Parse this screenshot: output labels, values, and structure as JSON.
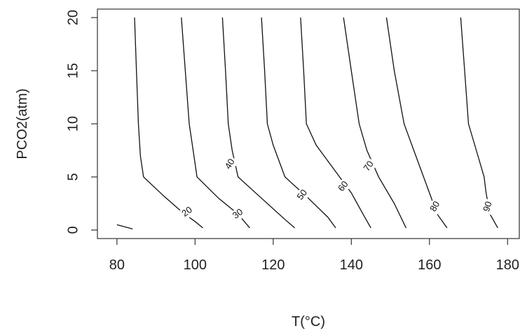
{
  "chart_data": {
    "type": "contour",
    "title": "",
    "xlabel": "T(°C)",
    "ylabel": "PCO2(atm)",
    "xlim": [
      75,
      183
    ],
    "ylim": [
      -0.8,
      20.8
    ],
    "xticks": [
      80,
      100,
      120,
      140,
      160,
      180
    ],
    "yticks": [
      0,
      5,
      10,
      15,
      20
    ],
    "grid": false,
    "contours": [
      {
        "level": "20",
        "points": [
          [
            80,
            0.5
          ],
          [
            84,
            0.1
          ]
        ]
      },
      {
        "level": "20",
        "points": [
          [
            86.8,
            5
          ],
          [
            92,
            3.2
          ],
          [
            97,
            1.6
          ],
          [
            100,
            0.8
          ],
          [
            102,
            0.2
          ]
        ]
      },
      {
        "level": "20",
        "points": [
          [
            84.5,
            20
          ],
          [
            85,
            15
          ],
          [
            85.5,
            10
          ],
          [
            86,
            7
          ],
          [
            86.8,
            5
          ]
        ]
      },
      {
        "level": "30",
        "points": [
          [
            96.5,
            20
          ],
          [
            97.5,
            15
          ],
          [
            98.5,
            10
          ],
          [
            99.5,
            7.5
          ],
          [
            100.5,
            5
          ],
          [
            106,
            3
          ],
          [
            111,
            1.5
          ],
          [
            114,
            0.2
          ]
        ]
      },
      {
        "level": "40",
        "points": [
          [
            107,
            20
          ],
          [
            107.8,
            15
          ],
          [
            108.5,
            10
          ],
          [
            109.5,
            7.5
          ],
          [
            111,
            5
          ],
          [
            117,
            3
          ],
          [
            123,
            1
          ],
          [
            125.5,
            0.2
          ]
        ]
      },
      {
        "level": "50",
        "points": [
          [
            117,
            20
          ],
          [
            117.8,
            15
          ],
          [
            118.5,
            10
          ],
          [
            120,
            8
          ],
          [
            123,
            5
          ],
          [
            129,
            3
          ],
          [
            134,
            1.2
          ],
          [
            136,
            0.2
          ]
        ]
      },
      {
        "level": "60",
        "points": [
          [
            127,
            20
          ],
          [
            127.8,
            15
          ],
          [
            128.5,
            10
          ],
          [
            131,
            8
          ],
          [
            135,
            6
          ],
          [
            140,
            3.5
          ],
          [
            143,
            1.5
          ],
          [
            145,
            0.2
          ]
        ]
      },
      {
        "level": "70",
        "points": [
          [
            138,
            20
          ],
          [
            140,
            15
          ],
          [
            142,
            10
          ],
          [
            144,
            7.5
          ],
          [
            147,
            5
          ],
          [
            151,
            2.5
          ],
          [
            154,
            0.2
          ]
        ]
      },
      {
        "level": "80",
        "points": [
          [
            149,
            20
          ],
          [
            151,
            15
          ],
          [
            153.5,
            10
          ],
          [
            156.5,
            7
          ],
          [
            159.5,
            4
          ],
          [
            162,
            1.5
          ],
          [
            164.5,
            0.2
          ]
        ]
      },
      {
        "level": "90",
        "points": [
          [
            168,
            20
          ],
          [
            169,
            15
          ],
          [
            170,
            10
          ],
          [
            172,
            7.5
          ],
          [
            174,
            5
          ],
          [
            174.5,
            3.5
          ],
          [
            175.5,
            1.5
          ],
          [
            177.5,
            0.2
          ]
        ]
      }
    ],
    "labels": [
      {
        "text": "20",
        "x": 98,
        "y": 1.7,
        "angle": -36
      },
      {
        "text": "30",
        "x": 111,
        "y": 1.5,
        "angle": -36
      },
      {
        "text": "40",
        "x": 109,
        "y": 6.2,
        "angle": -58
      },
      {
        "text": "50",
        "x": 127.5,
        "y": 3.3,
        "angle": -52
      },
      {
        "text": "60",
        "x": 138,
        "y": 4.1,
        "angle": -52
      },
      {
        "text": "70",
        "x": 144.5,
        "y": 6.0,
        "angle": -55
      },
      {
        "text": "80",
        "x": 161.5,
        "y": 2.2,
        "angle": -60
      },
      {
        "text": "90",
        "x": 175,
        "y": 2.2,
        "angle": -72
      }
    ]
  }
}
